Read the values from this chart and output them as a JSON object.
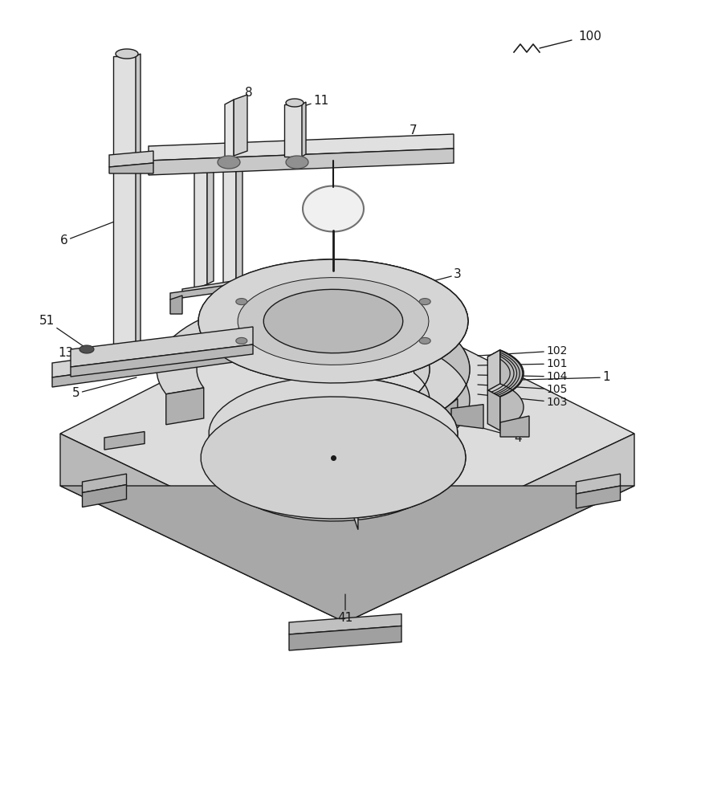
{
  "bg_color": "#ffffff",
  "line_color": "#1a1a1a",
  "lw": 1.0,
  "fig_w": 8.79,
  "fig_h": 10.0,
  "label_fs": 11,
  "face_top": "#efefef",
  "face_left": "#d2d2d2",
  "face_right": "#e0e0e0",
  "face_dark": "#b8b8b8",
  "face_white": "#f8f8f8"
}
